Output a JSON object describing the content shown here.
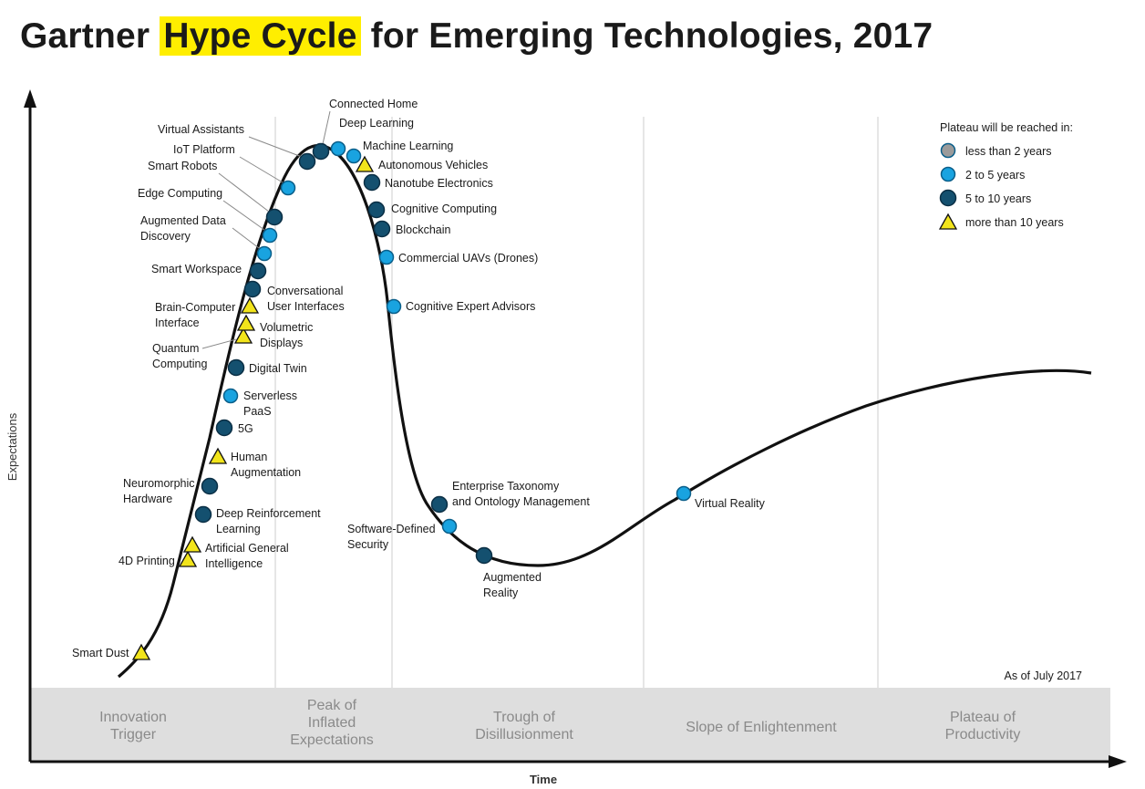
{
  "title": {
    "prefix": "Gartner ",
    "highlight": "Hype Cycle",
    "suffix": " for Emerging Technologies, 2017"
  },
  "axes": {
    "y_label": "Expectations",
    "x_label": "Time"
  },
  "as_of": "As of July 2017",
  "legend": {
    "title": "Plateau will be reached in:",
    "items": [
      {
        "key": "lt2",
        "label": "less than 2 years",
        "color": "#9b9b9b"
      },
      {
        "key": "2to5",
        "label": "2 to 5 years",
        "color": "#19a3e0"
      },
      {
        "key": "5to10",
        "label": "5 to 10 years",
        "color": "#14506f"
      },
      {
        "key": "gt10",
        "label": "more than 10 years",
        "color": "#f2e41b"
      }
    ]
  },
  "phases": [
    {
      "lines": [
        "Innovation",
        "Trigger"
      ]
    },
    {
      "lines": [
        "Peak of",
        "Inflated",
        "Expectations"
      ]
    },
    {
      "lines": [
        "Trough of",
        "Disillusionment"
      ]
    },
    {
      "lines": [
        "Slope of Enlightenment"
      ]
    },
    {
      "lines": [
        "Plateau of",
        "Productivity"
      ]
    }
  ],
  "technologies": [
    {
      "name": [
        "Smart Dust"
      ],
      "category": "gt10"
    },
    {
      "name": [
        "4D Printing"
      ],
      "category": "gt10"
    },
    {
      "name": [
        "Artificial General",
        "Intelligence"
      ],
      "category": "gt10"
    },
    {
      "name": [
        "Deep Reinforcement",
        "Learning"
      ],
      "category": "5to10"
    },
    {
      "name": [
        "Neuromorphic",
        "Hardware"
      ],
      "category": "5to10"
    },
    {
      "name": [
        "Human",
        "Augmentation"
      ],
      "category": "gt10"
    },
    {
      "name": [
        "5G"
      ],
      "category": "5to10"
    },
    {
      "name": [
        "Serverless",
        "PaaS"
      ],
      "category": "2to5"
    },
    {
      "name": [
        "Digital Twin"
      ],
      "category": "5to10"
    },
    {
      "name": [
        "Quantum",
        "Computing"
      ],
      "category": "gt10"
    },
    {
      "name": [
        "Volumetric",
        "Displays"
      ],
      "category": "gt10"
    },
    {
      "name": [
        "Brain-Computer",
        "Interface"
      ],
      "category": "gt10"
    },
    {
      "name": [
        "Conversational",
        "User Interfaces"
      ],
      "category": "5to10"
    },
    {
      "name": [
        "Smart Workspace"
      ],
      "category": "5to10"
    },
    {
      "name": [
        "Augmented Data",
        "Discovery"
      ],
      "category": "2to5"
    },
    {
      "name": [
        "Edge Computing"
      ],
      "category": "2to5"
    },
    {
      "name": [
        "Smart Robots"
      ],
      "category": "5to10"
    },
    {
      "name": [
        "IoT Platform"
      ],
      "category": "2to5"
    },
    {
      "name": [
        "Virtual Assistants"
      ],
      "category": "5to10"
    },
    {
      "name": [
        "Connected Home"
      ],
      "category": "5to10"
    },
    {
      "name": [
        "Deep Learning"
      ],
      "category": "2to5"
    },
    {
      "name": [
        "Machine Learning"
      ],
      "category": "2to5"
    },
    {
      "name": [
        "Autonomous Vehicles"
      ],
      "category": "gt10"
    },
    {
      "name": [
        "Nanotube Electronics"
      ],
      "category": "5to10"
    },
    {
      "name": [
        "Cognitive Computing"
      ],
      "category": "5to10"
    },
    {
      "name": [
        "Blockchain"
      ],
      "category": "5to10"
    },
    {
      "name": [
        "Commercial UAVs (Drones)"
      ],
      "category": "2to5"
    },
    {
      "name": [
        "Cognitive Expert Advisors"
      ],
      "category": "2to5"
    },
    {
      "name": [
        "Enterprise Taxonomy",
        "and Ontology Management"
      ],
      "category": "5to10"
    },
    {
      "name": [
        "Software-Defined",
        "Security"
      ],
      "category": "2to5"
    },
    {
      "name": [
        "Augmented",
        "Reality"
      ],
      "category": "5to10"
    },
    {
      "name": [
        "Virtual Reality"
      ],
      "category": "2to5"
    }
  ]
}
